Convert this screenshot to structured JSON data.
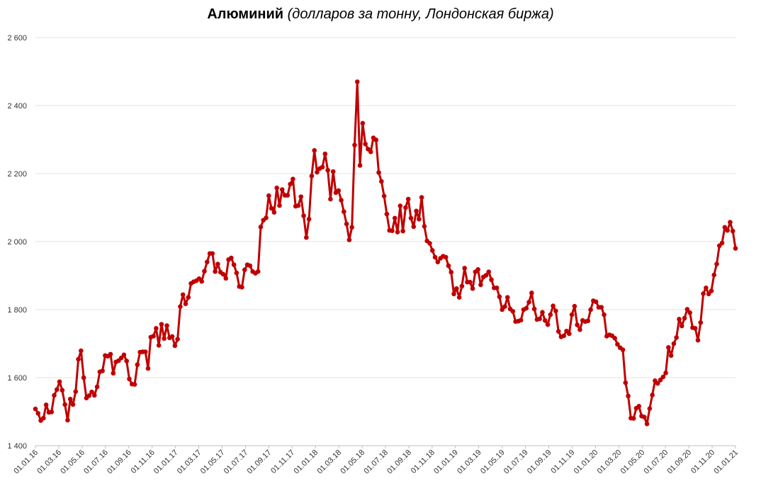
{
  "chart_data": {
    "type": "line",
    "title": "Алюминий",
    "subtitle": "(долларов за тонну, Лондонская биржа)",
    "xlabel": "",
    "ylabel": "",
    "ylim": [
      1400,
      2600
    ],
    "yticks": [
      1400,
      1600,
      1800,
      2000,
      2200,
      2400,
      2600
    ],
    "ytick_labels": [
      "1 400",
      "1 600",
      "1 800",
      "2 000",
      "2 200",
      "2 400",
      "2 600"
    ],
    "xtick_labels": [
      "01.01.16",
      "01.03.16",
      "01.05.16",
      "01.07.16",
      "01.09.16",
      "01.11.16",
      "01.01.17",
      "01.03.17",
      "01.05.17",
      "01.07.17",
      "01.09.17",
      "01.11.17",
      "01.01.18",
      "01.03.18",
      "01.05.18",
      "01.07.18",
      "01.09.18",
      "01.11.18",
      "01.01.19",
      "01.03.19",
      "01.05.19",
      "01.07.19",
      "01.09.19",
      "01.11.19",
      "01.01.20",
      "01.03.20",
      "01.05.20",
      "01.07.20",
      "01.09.20",
      "01.11.20",
      "01.01.21"
    ],
    "grid": true,
    "legend": "none",
    "series": [
      {
        "color": "#C00000",
        "marker": "circle",
        "values": [
          1508,
          1495,
          1474,
          1481,
          1520,
          1498,
          1499,
          1548,
          1565,
          1588,
          1563,
          1521,
          1475,
          1537,
          1521,
          1559,
          1654,
          1679,
          1600,
          1540,
          1547,
          1558,
          1548,
          1573,
          1617,
          1620,
          1665,
          1663,
          1669,
          1613,
          1646,
          1650,
          1658,
          1667,
          1649,
          1596,
          1581,
          1580,
          1638,
          1675,
          1676,
          1676,
          1627,
          1719,
          1722,
          1745,
          1695,
          1757,
          1715,
          1753,
          1717,
          1721,
          1694,
          1713,
          1809,
          1844,
          1817,
          1836,
          1877,
          1882,
          1885,
          1891,
          1883,
          1913,
          1940,
          1965,
          1965,
          1912,
          1934,
          1910,
          1904,
          1892,
          1947,
          1952,
          1932,
          1908,
          1868,
          1866,
          1917,
          1932,
          1929,
          1912,
          1907,
          1912,
          2043,
          2063,
          2070,
          2135,
          2098,
          2086,
          2158,
          2106,
          2153,
          2136,
          2136,
          2169,
          2184,
          2104,
          2106,
          2132,
          2076,
          2012,
          2066,
          2193,
          2268,
          2204,
          2215,
          2219,
          2258,
          2210,
          2125,
          2206,
          2144,
          2150,
          2122,
          2088,
          2052,
          2005,
          2042,
          2284,
          2470,
          2224,
          2348,
          2287,
          2272,
          2264,
          2305,
          2299,
          2203,
          2177,
          2134,
          2081,
          2033,
          2032,
          2069,
          2028,
          2105,
          2031,
          2100,
          2125,
          2069,
          2044,
          2090,
          2066,
          2130,
          2045,
          2002,
          1995,
          1974,
          1954,
          1940,
          1951,
          1957,
          1954,
          1929,
          1910,
          1846,
          1862,
          1836,
          1869,
          1922,
          1881,
          1881,
          1862,
          1911,
          1918,
          1873,
          1896,
          1901,
          1911,
          1888,
          1864,
          1864,
          1838,
          1800,
          1809,
          1836,
          1802,
          1795,
          1765,
          1766,
          1769,
          1800,
          1804,
          1822,
          1849,
          1802,
          1771,
          1773,
          1792,
          1768,
          1756,
          1785,
          1811,
          1796,
          1736,
          1720,
          1723,
          1737,
          1729,
          1785,
          1810,
          1755,
          1741,
          1768,
          1765,
          1767,
          1800,
          1826,
          1823,
          1807,
          1807,
          1785,
          1722,
          1726,
          1723,
          1716,
          1698,
          1688,
          1682,
          1585,
          1546,
          1481,
          1480,
          1510,
          1516,
          1487,
          1484,
          1464,
          1509,
          1549,
          1591,
          1583,
          1593,
          1602,
          1614,
          1689,
          1665,
          1700,
          1718,
          1772,
          1752,
          1775,
          1801,
          1791,
          1747,
          1745,
          1710,
          1762,
          1847,
          1864,
          1846,
          1855,
          1902,
          1934,
          1988,
          1996,
          2042,
          2033,
          2057,
          2031,
          1980
        ]
      }
    ]
  }
}
